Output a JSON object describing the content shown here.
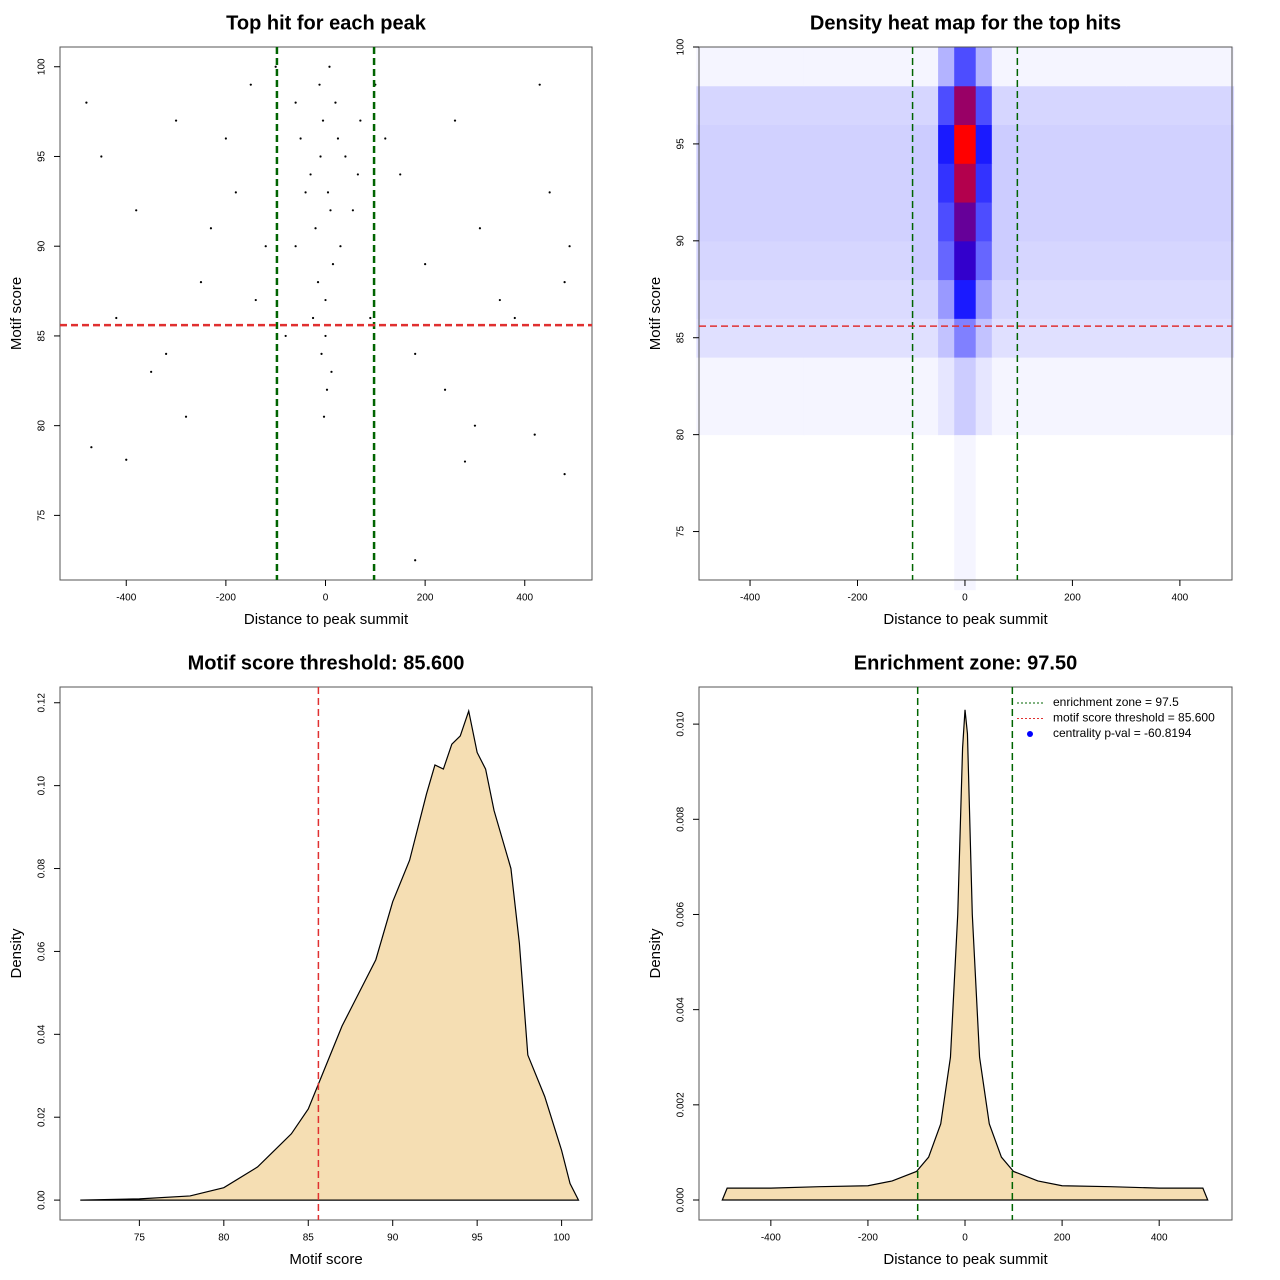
{
  "chart_data": [
    {
      "type": "scatter",
      "title": "Top hit for each peak",
      "xlabel": "Distance to peak summit",
      "ylabel": "Motif score",
      "x": [
        -10,
        5,
        -20,
        15,
        0,
        -5,
        25,
        -30,
        10,
        -15,
        30,
        -40,
        40,
        0,
        -8,
        12,
        -25,
        20,
        -12,
        8,
        -50,
        55,
        -60,
        65,
        3,
        -3,
        -450,
        -380,
        -300,
        -250,
        -180,
        -120,
        -420,
        -350,
        -280,
        -200,
        -150,
        -470,
        -400,
        -320,
        -230,
        -140,
        150,
        200,
        260,
        310,
        380,
        450,
        480,
        120,
        180,
        240,
        300,
        350,
        420,
        480,
        430,
        180,
        -100,
        100,
        -480,
        490,
        280,
        -60,
        70,
        -80,
        90
      ],
      "values": [
        95,
        93,
        91,
        89,
        87,
        97,
        96,
        94,
        92,
        88,
        90,
        93,
        95,
        85,
        84,
        83,
        86,
        98,
        99,
        100,
        96,
        92,
        90,
        94,
        82,
        80.5,
        95,
        92,
        97,
        88,
        93,
        90,
        86,
        83,
        80.5,
        96,
        99,
        78.8,
        78.1,
        84,
        91,
        87,
        94,
        89,
        97,
        91,
        86,
        93,
        88,
        96,
        84,
        82,
        80,
        87,
        79.5,
        77.3,
        99,
        72.5,
        100,
        99,
        98,
        90,
        78,
        98,
        97,
        85,
        86
      ],
      "color": "#000000",
      "xlim": [
        -533,
        535
      ],
      "ylim": [
        71.4,
        101.1
      ],
      "xticks": [
        -400,
        -200,
        0,
        200,
        400
      ],
      "yticks": [
        75,
        80,
        85,
        90,
        95,
        100
      ],
      "vlines": [
        {
          "value": -97.5,
          "color": "#006400"
        },
        {
          "value": 97.5,
          "color": "#006400"
        }
      ],
      "hlines": [
        {
          "value": 85.6,
          "color": "#e03030"
        }
      ]
    },
    {
      "type": "heatmap",
      "title": "Density heat map for the top hits",
      "xlabel": "Distance to peak summit",
      "ylabel": "Motif score",
      "x_edges": [
        -500,
        -300,
        -100,
        -50,
        -20,
        20,
        50,
        100,
        300,
        500
      ],
      "y_edges": [
        72,
        80,
        84,
        86,
        88,
        90,
        92,
        94,
        96,
        98,
        100
      ],
      "z": [
        [
          0,
          0,
          0,
          0,
          0.02,
          0,
          0,
          0,
          0
        ],
        [
          0.02,
          0.02,
          0.02,
          0.05,
          0.1,
          0.05,
          0.02,
          0.02,
          0.02
        ],
        [
          0.06,
          0.06,
          0.06,
          0.12,
          0.25,
          0.12,
          0.06,
          0.06,
          0.06
        ],
        [
          0.07,
          0.07,
          0.08,
          0.2,
          0.45,
          0.2,
          0.08,
          0.07,
          0.07
        ],
        [
          0.08,
          0.08,
          0.1,
          0.3,
          0.6,
          0.3,
          0.1,
          0.08,
          0.08
        ],
        [
          0.09,
          0.09,
          0.1,
          0.35,
          0.7,
          0.35,
          0.1,
          0.09,
          0.09
        ],
        [
          0.09,
          0.09,
          0.1,
          0.4,
          0.85,
          0.4,
          0.1,
          0.09,
          0.09
        ],
        [
          0.09,
          0.09,
          0.1,
          0.45,
          1.0,
          0.45,
          0.1,
          0.09,
          0.09
        ],
        [
          0.08,
          0.08,
          0.08,
          0.35,
          0.8,
          0.35,
          0.08,
          0.08,
          0.08
        ],
        [
          0.02,
          0.02,
          0.02,
          0.15,
          0.35,
          0.15,
          0.02,
          0.02,
          0.02
        ]
      ],
      "colorscale": [
        "#ffffff",
        "#0000ff",
        "#ff0000"
      ],
      "xlim": [
        -495,
        497
      ],
      "ylim": [
        72.5,
        100
      ],
      "xticks": [
        -400,
        -200,
        0,
        200,
        400
      ],
      "yticks": [
        75,
        80,
        85,
        90,
        95,
        100
      ],
      "vlines": [
        {
          "value": -97.5,
          "color": "#006400"
        },
        {
          "value": 97.5,
          "color": "#006400"
        }
      ],
      "hlines": [
        {
          "value": 85.6,
          "color": "#e03030"
        }
      ]
    },
    {
      "type": "area",
      "title": "Motif score threshold: 85.600",
      "xlabel": "Motif score",
      "ylabel": "Density",
      "x": [
        71.5,
        75,
        78,
        80,
        82,
        84,
        85,
        86,
        87,
        88,
        89,
        90,
        91,
        92,
        92.5,
        93,
        93.5,
        94,
        94.5,
        95,
        95.5,
        96,
        97,
        97.5,
        98,
        99,
        100,
        100.5,
        101
      ],
      "values": [
        0,
        0.0003,
        0.001,
        0.003,
        0.008,
        0.016,
        0.022,
        0.032,
        0.042,
        0.05,
        0.058,
        0.072,
        0.082,
        0.098,
        0.105,
        0.104,
        0.11,
        0.112,
        0.118,
        0.108,
        0.104,
        0.094,
        0.08,
        0.062,
        0.035,
        0.025,
        0.012,
        0.004,
        0
      ],
      "color": "#f5deb3",
      "xlim": [
        70.3,
        101.8
      ],
      "ylim": [
        -0.0048,
        0.1238
      ],
      "xticks": [
        75,
        80,
        85,
        90,
        95,
        100
      ],
      "yticks": [
        {
          "value": 0,
          "label": "0.00"
        },
        0.02,
        0.04,
        0.06,
        0.08,
        {
          "value": 0.1,
          "label": "0.10"
        },
        0.12
      ],
      "vlines": [
        {
          "value": 85.6,
          "color": "#e03030"
        }
      ]
    },
    {
      "type": "area",
      "title": "Enrichment zone: 97.50",
      "xlabel": "Distance to peak summit",
      "ylabel": "Density",
      "x": [
        -500,
        -490,
        -400,
        -300,
        -200,
        -150,
        -100,
        -75,
        -50,
        -30,
        -15,
        -5,
        0,
        5,
        15,
        30,
        50,
        75,
        100,
        150,
        200,
        300,
        400,
        490,
        500
      ],
      "values": [
        0,
        0.00025,
        0.00025,
        0.00028,
        0.0003,
        0.0004,
        0.0006,
        0.0009,
        0.0016,
        0.003,
        0.006,
        0.0095,
        0.0103,
        0.0098,
        0.006,
        0.003,
        0.0016,
        0.0009,
        0.0006,
        0.0004,
        0.0003,
        0.00028,
        0.00025,
        0.00025,
        0
      ],
      "color": "#f5deb3",
      "xlim": [
        -548,
        550
      ],
      "ylim": [
        -0.00042,
        0.01078
      ],
      "xticks": [
        -400,
        -200,
        0,
        200,
        400
      ],
      "yticks": [
        {
          "value": 0,
          "label": "0.000"
        },
        0.002,
        0.004,
        0.006,
        0.008,
        {
          "value": 0.01,
          "label": "0.010"
        }
      ],
      "vlines": [
        {
          "value": -97.5,
          "color": "#006400"
        },
        {
          "value": 97.5,
          "color": "#006400"
        }
      ],
      "legend": {
        "position": "topright",
        "entries": [
          {
            "label": "enrichment zone = 97.5",
            "color": "#006400",
            "style": "line"
          },
          {
            "label": "motif score threshold = 85.600",
            "color": "#e03030",
            "style": "line"
          },
          {
            "label": "centrality p-val = -60.8194",
            "color": "#0000ff",
            "style": "point"
          }
        ]
      }
    }
  ]
}
